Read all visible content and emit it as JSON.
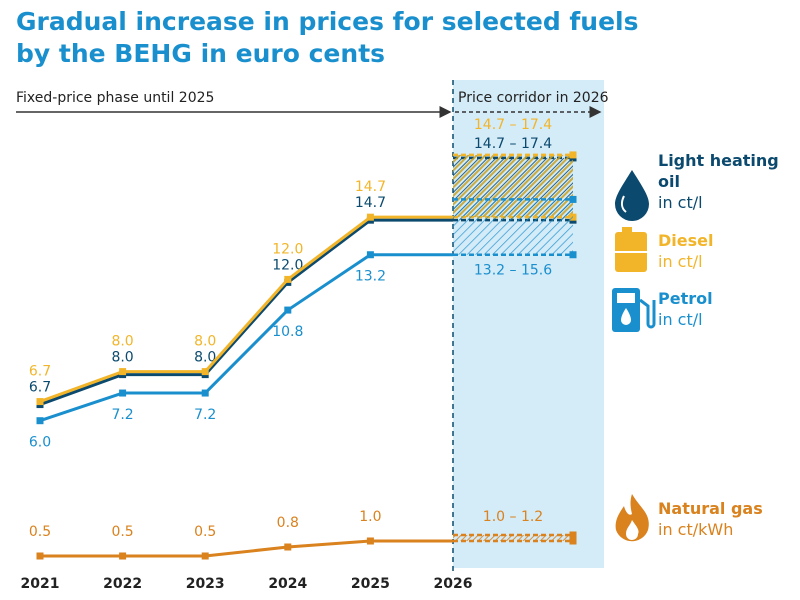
{
  "chart_data": {
    "type": "line",
    "title": [
      "Gradual increase in prices for selected fuels",
      "by the BEHG in euro cents"
    ],
    "annotations": [
      "Fixed-price phase until 2025",
      "Price corridor in 2026"
    ],
    "categories": [
      "2021",
      "2022",
      "2023",
      "2024",
      "2025",
      "2026"
    ],
    "ylim": [
      0,
      20
    ],
    "y2lim": [
      0,
      2
    ],
    "series": [
      {
        "name": "Light heating oil",
        "unit": "in ct/l",
        "color": "#0b4a6e",
        "values": [
          6.7,
          8.0,
          8.0,
          12.0,
          14.7,
          null
        ],
        "value_labels": [
          "6.7",
          "8.0",
          "8.0",
          "12.0",
          "14.7",
          null
        ],
        "corridor": [
          14.7,
          17.4
        ],
        "corridor_label": "14.7 – 17.4"
      },
      {
        "name": "Diesel",
        "unit": "in ct/l",
        "color": "#f2b52a",
        "values": [
          6.7,
          8.0,
          8.0,
          12.0,
          14.7,
          null
        ],
        "value_labels": [
          "6.7",
          "8.0",
          "8.0",
          "12.0",
          "14.7",
          null
        ],
        "corridor": [
          14.7,
          17.4
        ],
        "corridor_label": "14.7 – 17.4"
      },
      {
        "name": "Petrol",
        "unit": "in ct/l",
        "color": "#1a8fce",
        "values": [
          6.0,
          7.2,
          7.2,
          10.8,
          13.2,
          null
        ],
        "value_labels": [
          "6.0",
          "7.2",
          "7.2",
          "10.8",
          "13.2",
          null
        ],
        "corridor": [
          13.2,
          15.6
        ],
        "corridor_label": "13.2 – 15.6"
      },
      {
        "name": "Natural gas",
        "unit": "in ct/kWh",
        "color": "#d9821e",
        "axis": "y2",
        "values": [
          0.5,
          0.5,
          0.5,
          0.8,
          1.0,
          null
        ],
        "value_labels": [
          "0.5",
          "0.5",
          "0.5",
          "0.8",
          "1.0",
          null
        ],
        "corridor": [
          1.0,
          1.2
        ],
        "corridor_label": "1.0 – 1.2"
      }
    ]
  }
}
